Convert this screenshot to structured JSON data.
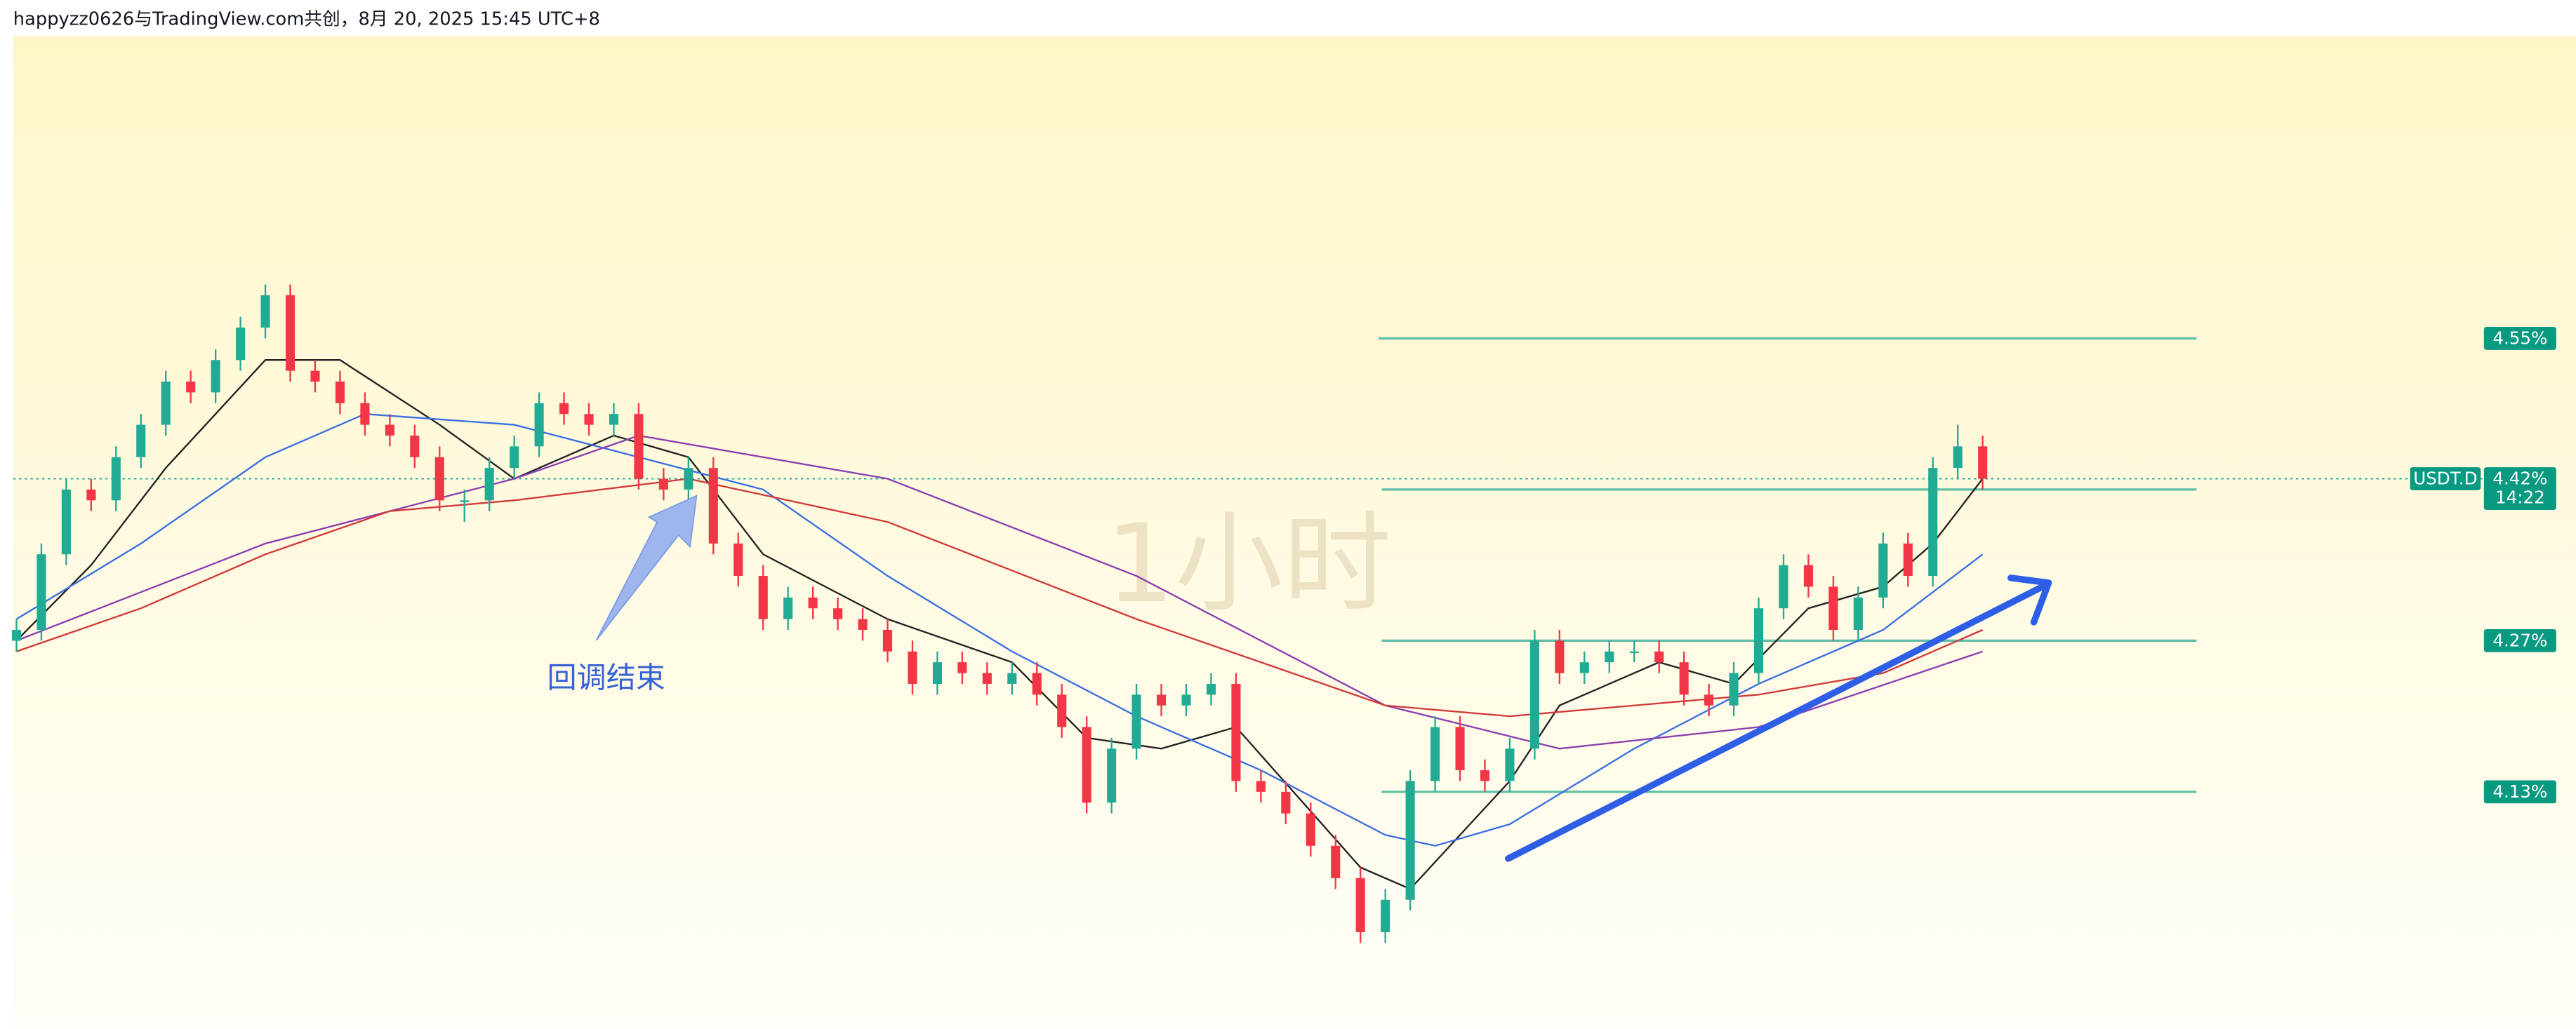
{
  "chart_data": {
    "type": "candlestick",
    "title": "happyzz0626与TradingView.com共创，8月 20, 2025 15:45 UTC+8",
    "watermark": "1小时",
    "annotation": "回调结束",
    "symbol": "USDT.D",
    "last_price": {
      "value": 4.42,
      "label": "4.42%"
    },
    "countdown": "14:22",
    "ylim": [
      3.91,
      4.83
    ],
    "yticks": [
      {
        "value": 4.55,
        "label": "4.55%"
      },
      {
        "value": 4.27,
        "label": "4.27%"
      },
      {
        "value": 4.13,
        "label": "4.13%"
      }
    ],
    "up_color": "#22ab94",
    "down_color": "#f23645",
    "open": [
      4.27,
      4.28,
      4.35,
      4.41,
      4.4,
      4.44,
      4.47,
      4.51,
      4.5,
      4.53,
      4.56,
      4.59,
      4.52,
      4.51,
      4.49,
      4.47,
      4.46,
      4.44,
      4.4,
      4.4,
      4.43,
      4.45,
      4.49,
      4.48,
      4.47,
      4.48,
      4.42,
      4.41,
      4.43,
      4.36,
      4.33,
      4.29,
      4.31,
      4.3,
      4.29,
      4.28,
      4.26,
      4.23,
      4.25,
      4.24,
      4.23,
      4.24,
      4.22,
      4.19,
      4.12,
      4.17,
      4.22,
      4.21,
      4.22,
      4.23,
      4.14,
      4.13,
      4.11,
      4.08,
      4.05,
      4.0,
      4.03,
      4.14,
      4.19,
      4.15,
      4.14,
      4.17,
      4.27,
      4.24,
      4.25,
      4.26,
      4.26,
      4.25,
      4.22,
      4.21,
      4.24,
      4.3,
      4.34,
      4.32,
      4.28,
      4.31,
      4.36,
      4.33,
      4.43,
      4.45
    ],
    "high": [
      4.29,
      4.36,
      4.42,
      4.42,
      4.45,
      4.48,
      4.52,
      4.52,
      4.54,
      4.57,
      4.6,
      4.6,
      4.53,
      4.52,
      4.5,
      4.48,
      4.47,
      4.45,
      4.41,
      4.44,
      4.46,
      4.5,
      4.5,
      4.49,
      4.49,
      4.49,
      4.43,
      4.44,
      4.44,
      4.37,
      4.34,
      4.32,
      4.32,
      4.31,
      4.3,
      4.29,
      4.27,
      4.26,
      4.26,
      4.25,
      4.25,
      4.25,
      4.23,
      4.2,
      4.18,
      4.23,
      4.23,
      4.23,
      4.24,
      4.24,
      4.15,
      4.14,
      4.12,
      4.09,
      4.06,
      4.04,
      4.15,
      4.2,
      4.2,
      4.16,
      4.18,
      4.28,
      4.28,
      4.26,
      4.27,
      4.27,
      4.27,
      4.26,
      4.23,
      4.25,
      4.31,
      4.35,
      4.35,
      4.33,
      4.32,
      4.37,
      4.37,
      4.44,
      4.47,
      4.46
    ],
    "low": [
      4.26,
      4.27,
      4.34,
      4.39,
      4.39,
      4.43,
      4.46,
      4.49,
      4.49,
      4.52,
      4.55,
      4.51,
      4.5,
      4.48,
      4.46,
      4.45,
      4.43,
      4.39,
      4.38,
      4.39,
      4.42,
      4.44,
      4.47,
      4.46,
      4.46,
      4.41,
      4.4,
      4.4,
      4.35,
      4.32,
      4.28,
      4.28,
      4.29,
      4.28,
      4.27,
      4.25,
      4.22,
      4.22,
      4.23,
      4.22,
      4.22,
      4.21,
      4.18,
      4.11,
      4.11,
      4.16,
      4.2,
      4.2,
      4.21,
      4.13,
      4.12,
      4.1,
      4.07,
      4.04,
      3.99,
      3.99,
      4.02,
      4.13,
      4.14,
      4.13,
      4.13,
      4.16,
      4.23,
      4.23,
      4.24,
      4.25,
      4.24,
      4.21,
      4.2,
      4.2,
      4.23,
      4.29,
      4.31,
      4.27,
      4.27,
      4.3,
      4.32,
      4.32,
      4.42,
      4.41
    ],
    "close": [
      4.28,
      4.35,
      4.41,
      4.4,
      4.44,
      4.47,
      4.51,
      4.5,
      4.53,
      4.56,
      4.59,
      4.52,
      4.51,
      4.49,
      4.47,
      4.46,
      4.44,
      4.4,
      4.4,
      4.43,
      4.45,
      4.49,
      4.48,
      4.47,
      4.48,
      4.42,
      4.41,
      4.43,
      4.36,
      4.33,
      4.29,
      4.31,
      4.3,
      4.29,
      4.28,
      4.26,
      4.23,
      4.25,
      4.24,
      4.23,
      4.24,
      4.22,
      4.19,
      4.12,
      4.17,
      4.22,
      4.21,
      4.22,
      4.23,
      4.14,
      4.13,
      4.11,
      4.08,
      4.05,
      4.0,
      4.03,
      4.14,
      4.19,
      4.15,
      4.14,
      4.17,
      4.27,
      4.24,
      4.25,
      4.26,
      4.26,
      4.25,
      4.22,
      4.21,
      4.24,
      4.3,
      4.34,
      4.32,
      4.28,
      4.31,
      4.36,
      4.33,
      4.43,
      4.45,
      4.42
    ],
    "lines": [
      {
        "color": "#222222",
        "x": [
          0,
          3,
          6,
          10,
          13,
          17,
          20,
          24,
          27,
          30,
          35,
          40,
          43,
          46,
          49,
          54,
          56,
          60,
          62,
          66,
          69,
          72,
          75,
          77,
          79
        ],
        "values": [
          4.27,
          4.34,
          4.43,
          4.53,
          4.53,
          4.47,
          4.42,
          4.46,
          4.44,
          4.35,
          4.29,
          4.25,
          4.18,
          4.17,
          4.19,
          4.06,
          4.04,
          4.14,
          4.21,
          4.25,
          4.23,
          4.3,
          4.32,
          4.36,
          4.42
        ]
      },
      {
        "color": "#3a6fe0",
        "x": [
          0,
          5,
          10,
          14,
          20,
          25,
          30,
          35,
          40,
          45,
          50,
          55,
          57,
          60,
          65,
          70,
          75,
          79
        ],
        "values": [
          4.29,
          4.36,
          4.44,
          4.48,
          4.47,
          4.44,
          4.41,
          4.33,
          4.26,
          4.2,
          4.15,
          4.09,
          4.08,
          4.1,
          4.17,
          4.23,
          4.28,
          4.35
        ]
      },
      {
        "color": "#8a3fb0",
        "x": [
          0,
          10,
          20,
          25,
          35,
          45,
          55,
          62,
          70,
          79
        ],
        "values": [
          4.27,
          4.36,
          4.42,
          4.46,
          4.42,
          4.33,
          4.21,
          4.17,
          4.19,
          4.26
        ]
      },
      {
        "color": "#d03a3a",
        "x": [
          0,
          5,
          10,
          15,
          20,
          27,
          35,
          45,
          55,
          60,
          65,
          70,
          75,
          79
        ],
        "values": [
          4.26,
          4.3,
          4.35,
          4.39,
          4.4,
          4.42,
          4.38,
          4.29,
          4.21,
          4.2,
          4.21,
          4.22,
          4.24,
          4.28
        ]
      }
    ],
    "levels": [
      4.55,
      4.41,
      4.27,
      4.13
    ],
    "level_color": "#5fbfa8",
    "label_color": "#089981"
  }
}
